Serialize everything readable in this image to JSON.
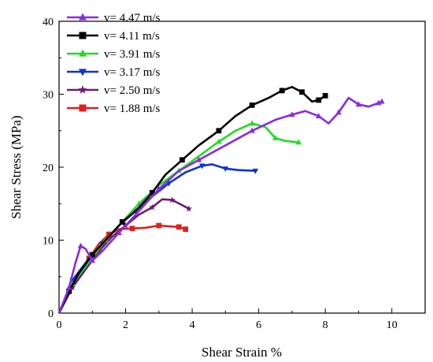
{
  "chart_data": {
    "type": "line",
    "xlabel": "Shear Strain %",
    "ylabel": "Shear Stress (MPa)",
    "xlim": [
      0,
      11
    ],
    "ylim": [
      0,
      40
    ],
    "xticks": [
      "0",
      "2",
      "4",
      "6",
      "8",
      "10"
    ],
    "yticks": [
      "0",
      "10",
      "20",
      "30",
      "40"
    ],
    "legend_position": "top-left",
    "grid": false,
    "series": [
      {
        "name": "v= 4.47 m/s",
        "color": "#8a2be2",
        "marker": "triangle-up",
        "points": [
          [
            0,
            0
          ],
          [
            0.3,
            3.5
          ],
          [
            0.5,
            7
          ],
          [
            0.65,
            9.2
          ],
          [
            0.8,
            8.8
          ],
          [
            1.0,
            7.2
          ],
          [
            1.3,
            8.5
          ],
          [
            1.8,
            11
          ],
          [
            2.4,
            14
          ],
          [
            3.0,
            17
          ],
          [
            3.6,
            19.5
          ],
          [
            4.2,
            21
          ],
          [
            5.0,
            23
          ],
          [
            5.8,
            25
          ],
          [
            6.5,
            26.5
          ],
          [
            7.0,
            27.2
          ],
          [
            7.4,
            27.7
          ],
          [
            7.8,
            27
          ],
          [
            8.1,
            26
          ],
          [
            8.4,
            27.5
          ],
          [
            8.7,
            29.5
          ],
          [
            9.0,
            28.6
          ],
          [
            9.3,
            28.3
          ],
          [
            9.6,
            28.8
          ],
          [
            9.7,
            29
          ]
        ]
      },
      {
        "name": "v= 4.11 m/s",
        "color": "#000000",
        "marker": "square",
        "points": [
          [
            0,
            0
          ],
          [
            0.3,
            3
          ],
          [
            0.6,
            5.5
          ],
          [
            1.0,
            8
          ],
          [
            1.4,
            10
          ],
          [
            1.9,
            12.5
          ],
          [
            2.3,
            14
          ],
          [
            2.8,
            16.5
          ],
          [
            3.2,
            19
          ],
          [
            3.7,
            21
          ],
          [
            4.2,
            23
          ],
          [
            4.8,
            25
          ],
          [
            5.3,
            27
          ],
          [
            5.8,
            28.5
          ],
          [
            6.3,
            29.5
          ],
          [
            6.7,
            30.5
          ],
          [
            7.0,
            31
          ],
          [
            7.3,
            30.3
          ],
          [
            7.6,
            29
          ],
          [
            7.8,
            29.2
          ],
          [
            8.0,
            29.8
          ]
        ]
      },
      {
        "name": "v= 3.91 m/s",
        "color": "#22dd22",
        "marker": "triangle-up",
        "points": [
          [
            0,
            0
          ],
          [
            0.4,
            4
          ],
          [
            0.9,
            7
          ],
          [
            1.4,
            10
          ],
          [
            1.9,
            12.5
          ],
          [
            2.4,
            15
          ],
          [
            3.0,
            17.5
          ],
          [
            3.6,
            19.5
          ],
          [
            4.2,
            21.5
          ],
          [
            4.8,
            23.5
          ],
          [
            5.3,
            25
          ],
          [
            5.8,
            26
          ],
          [
            6.2,
            25.5
          ],
          [
            6.5,
            24
          ],
          [
            6.8,
            23.6
          ],
          [
            7.2,
            23.4
          ]
        ]
      },
      {
        "name": "v= 3.17 m/s",
        "color": "#1030d8",
        "marker": "triangle-down",
        "points": [
          [
            0,
            0
          ],
          [
            0.4,
            4.5
          ],
          [
            0.9,
            7.5
          ],
          [
            1.3,
            9.5
          ],
          [
            1.8,
            12
          ],
          [
            2.3,
            14
          ],
          [
            2.8,
            16
          ],
          [
            3.3,
            17.8
          ],
          [
            3.8,
            19.3
          ],
          [
            4.3,
            20.2
          ],
          [
            4.6,
            20.4
          ],
          [
            5.0,
            19.8
          ],
          [
            5.4,
            19.6
          ],
          [
            5.9,
            19.5
          ]
        ]
      },
      {
        "name": "v= 2.50 m/s",
        "color": "#6a1e6e",
        "marker": "star",
        "points": [
          [
            0,
            0
          ],
          [
            0.4,
            3.5
          ],
          [
            0.8,
            6
          ],
          [
            1.2,
            8.5
          ],
          [
            1.6,
            10.5
          ],
          [
            2.0,
            12
          ],
          [
            2.4,
            13.5
          ],
          [
            2.8,
            14.5
          ],
          [
            3.1,
            15.6
          ],
          [
            3.4,
            15.5
          ],
          [
            3.7,
            14.8
          ],
          [
            3.9,
            14.3
          ]
        ]
      },
      {
        "name": "v= 1.88 m/s",
        "color": "#e02020",
        "marker": "square",
        "points": [
          [
            0,
            0
          ],
          [
            0.3,
            3
          ],
          [
            0.6,
            5.5
          ],
          [
            0.9,
            7.5
          ],
          [
            1.2,
            9.5
          ],
          [
            1.5,
            10.8
          ],
          [
            1.8,
            11.5
          ],
          [
            2.2,
            11.6
          ],
          [
            2.6,
            11.7
          ],
          [
            3.0,
            12
          ],
          [
            3.3,
            11.9
          ],
          [
            3.6,
            11.8
          ],
          [
            3.8,
            11.5
          ]
        ]
      }
    ]
  }
}
